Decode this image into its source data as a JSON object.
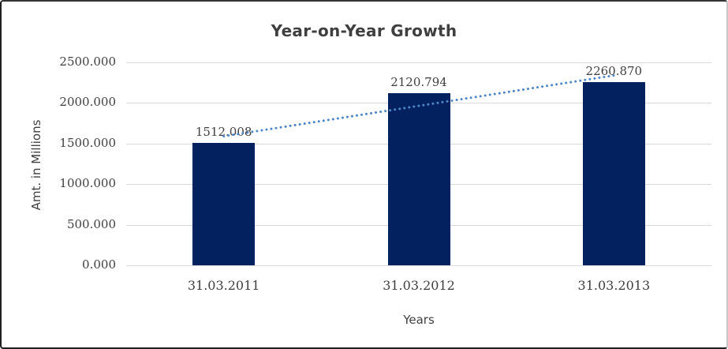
{
  "chart_data": {
    "type": "bar",
    "title": "Year-on-Year Growth",
    "xlabel": "Years",
    "ylabel": "Amt. in Millions",
    "categories": [
      "31.03.2011",
      "31.03.2012",
      "31.03.2013"
    ],
    "values": [
      1512.008,
      2120.794,
      2260.87
    ],
    "data_labels": [
      "1512.008",
      "2120.794",
      "2260.870"
    ],
    "y_ticks": [
      "0.000",
      "500.000",
      "1000.000",
      "1500.000",
      "2000.000",
      "2500.000"
    ],
    "ylim": [
      0,
      2500
    ],
    "grid": true,
    "legend": "none",
    "trendline": {
      "type": "linear",
      "style": "dotted"
    }
  },
  "colors": {
    "bar": "#04215f",
    "trendline": "#4e86c8",
    "gridline": "#d9d9d9",
    "text": "#3f3f3f"
  }
}
